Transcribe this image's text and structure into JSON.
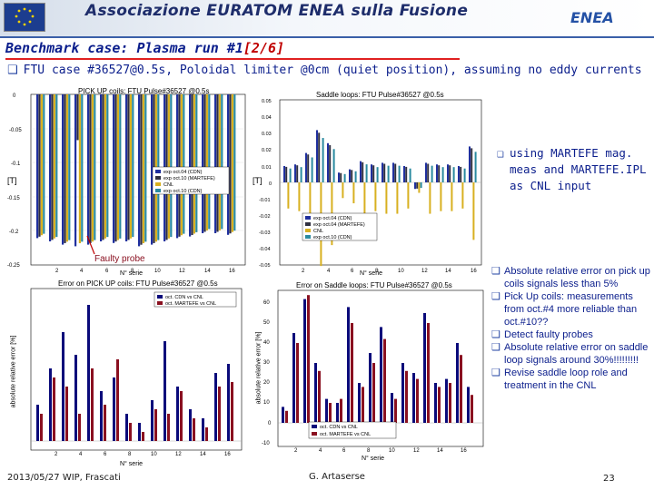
{
  "header": {
    "title": "Associazione EURATOM ENEA sulla Fusione",
    "logo_right": "ENEA",
    "colors": {
      "band": "#1e2d6b",
      "rule": "#3a5fa8"
    }
  },
  "slide": {
    "title": "Benchmark case: Plasma run #1",
    "page_marker": "[2/6]",
    "subtitle": "FTU case #36527@0.5s, Poloidal limiter @0cm (quiet position), assuming no eddy currents",
    "bullet_icon": "square-bullet-icon"
  },
  "plots": {
    "pickup": {
      "title": "PICK UP coils: FTU Pulse#36527 @0.5s",
      "ylabel": "[T]",
      "xlabel": "N° serie",
      "legend": [
        "exp oct.04 (CDN)",
        "exp oct.10 (MARTEFE)",
        "CNL",
        "exp oct.10 (CDN)"
      ],
      "yticks": [
        "0",
        "-0.05",
        "-0.1",
        "-0.15",
        "-0.2",
        "-0.25"
      ],
      "xticks": [
        "2",
        "4",
        "6",
        "8",
        "10",
        "12",
        "14",
        "16"
      ],
      "annotation": "Faulty probe"
    },
    "saddle": {
      "title": "Saddle loops: FTU Pulse#36527 @0.5s",
      "ylabel": "[T]",
      "xlabel": "N° serie",
      "legend": [
        "exp oct.04 (CDN)",
        "exp oct.04 (MARTEFE)",
        "CNL",
        "exp oct.10 (CDN)"
      ],
      "yticks": [
        "0.05",
        "0.04",
        "0.03",
        "0.02",
        "0.01",
        "0",
        "-0.01",
        "-0.02",
        "-0.03",
        "-0.04",
        "-0.05"
      ],
      "xticks": [
        "2",
        "4",
        "6",
        "8",
        "10",
        "12",
        "14",
        "16"
      ]
    },
    "pickup_err": {
      "title": "Error on PICK UP coils: FTU Pulse#36527 @0.5s",
      "ylabel": "absolute relative error [%]",
      "xlabel": "N° serie",
      "legend": [
        "oct. CDN vs CNL",
        "oct. MARTEFE vs CNL"
      ],
      "xticks": [
        "2",
        "4",
        "6",
        "8",
        "10",
        "12",
        "14",
        "16"
      ]
    },
    "saddle_err": {
      "title": "Error on Saddle loops: FTU Pulse#36527 @0.5s",
      "ylabel": "absolute relative error [%]",
      "xlabel": "N° serie",
      "legend": [
        "oct. CDN vs CNL",
        "oct. MARTEFE vs CNL"
      ],
      "yticks": [
        "60",
        "50",
        "40",
        "30",
        "20",
        "10",
        "0",
        "-10"
      ],
      "xticks": [
        "2",
        "4",
        "6",
        "8",
        "10",
        "12",
        "14",
        "16"
      ]
    },
    "colors": {
      "blue": "#1f2f9e",
      "navy": "#0a0a7a",
      "dark": "#303040",
      "yellow": "#d8b020",
      "teal": "#2a8aa0",
      "red": "#8a1020"
    }
  },
  "notes": {
    "top": "using MARTEFE mag. meas and MARTEFE.IPL as CNL input",
    "items": [
      "Absolute relative error on pick up coils signals less than 5%",
      "Pick Up coils: measurements from oct.#4 more reliable than oct.#10??",
      "Detect faulty probes",
      "Absolute relative error on saddle loop signals around 30%!!!!!!!!!",
      "Revise saddle loop role and treatment in the CNL"
    ]
  },
  "footer": {
    "date": "2013/05/27   WIP, Frascati",
    "author": "G. Artaserse",
    "page": "23"
  }
}
